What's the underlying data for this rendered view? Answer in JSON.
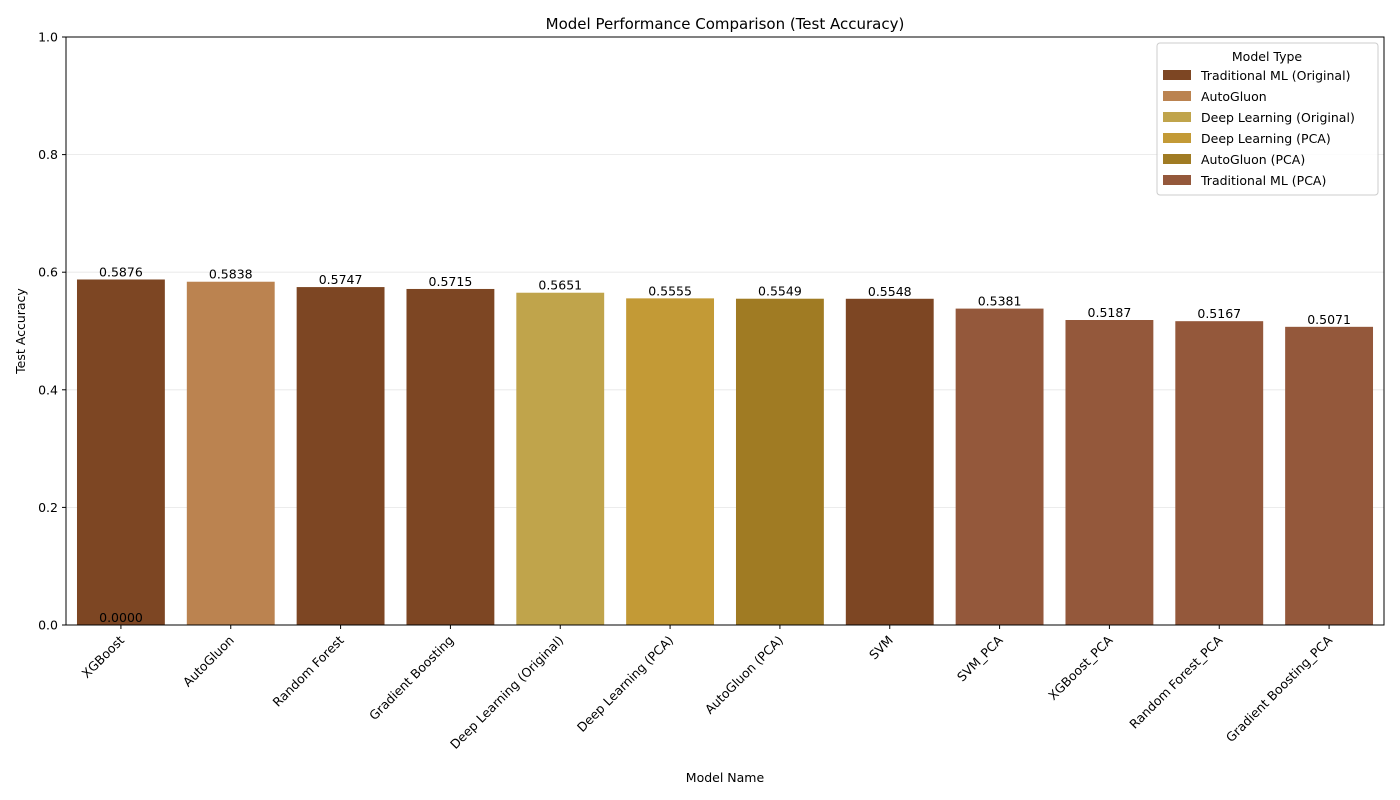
{
  "chart_data": {
    "type": "bar",
    "title": "Model Performance Comparison (Test Accuracy)",
    "xlabel": "Model Name",
    "ylabel": "Test Accuracy",
    "ylim": [
      0,
      1.0
    ],
    "yticks": [
      "0.0",
      "0.2",
      "0.4",
      "0.6",
      "0.8",
      "1.0"
    ],
    "grid": "horizontal",
    "categories": [
      "XGBoost",
      "AutoGluon",
      "Random Forest",
      "Gradient Boosting",
      "Deep Learning (Original)",
      "Deep Learning (PCA)",
      "AutoGluon (PCA)",
      "SVM",
      "SVM_PCA",
      "XGBoost_PCA",
      "Random Forest_PCA",
      "Gradient Boosting_PCA"
    ],
    "values": [
      0.5876,
      0.5838,
      0.5747,
      0.5715,
      0.5651,
      0.5555,
      0.5549,
      0.5548,
      0.5381,
      0.5187,
      0.5167,
      0.5071
    ],
    "value_labels": [
      "0.5876",
      "0.5838",
      "0.5747",
      "0.5715",
      "0.5651",
      "0.5555",
      "0.5549",
      "0.5548",
      "0.5381",
      "0.5187",
      "0.5167",
      "0.5071"
    ],
    "bar_types": [
      "Traditional ML (Original)",
      "AutoGluon",
      "Traditional ML (Original)",
      "Traditional ML (Original)",
      "Deep Learning (Original)",
      "Deep Learning (PCA)",
      "AutoGluon (PCA)",
      "Traditional ML (Original)",
      "Traditional ML (PCA)",
      "Traditional ML (PCA)",
      "Traditional ML (PCA)",
      "Traditional ML (PCA)"
    ],
    "extra_annotation": "0.0000",
    "legend": {
      "title": "Model Type",
      "placement": "top-right",
      "entries": [
        {
          "name": "Traditional ML (Original)",
          "color": "#7d4623"
        },
        {
          "name": "AutoGluon",
          "color": "#bb8350"
        },
        {
          "name": "Deep Learning (Original)",
          "color": "#c0a44b"
        },
        {
          "name": "Deep Learning (PCA)",
          "color": "#c39a36"
        },
        {
          "name": "AutoGluon (PCA)",
          "color": "#a07b23"
        },
        {
          "name": "Traditional ML (PCA)",
          "color": "#94583b"
        }
      ]
    }
  }
}
